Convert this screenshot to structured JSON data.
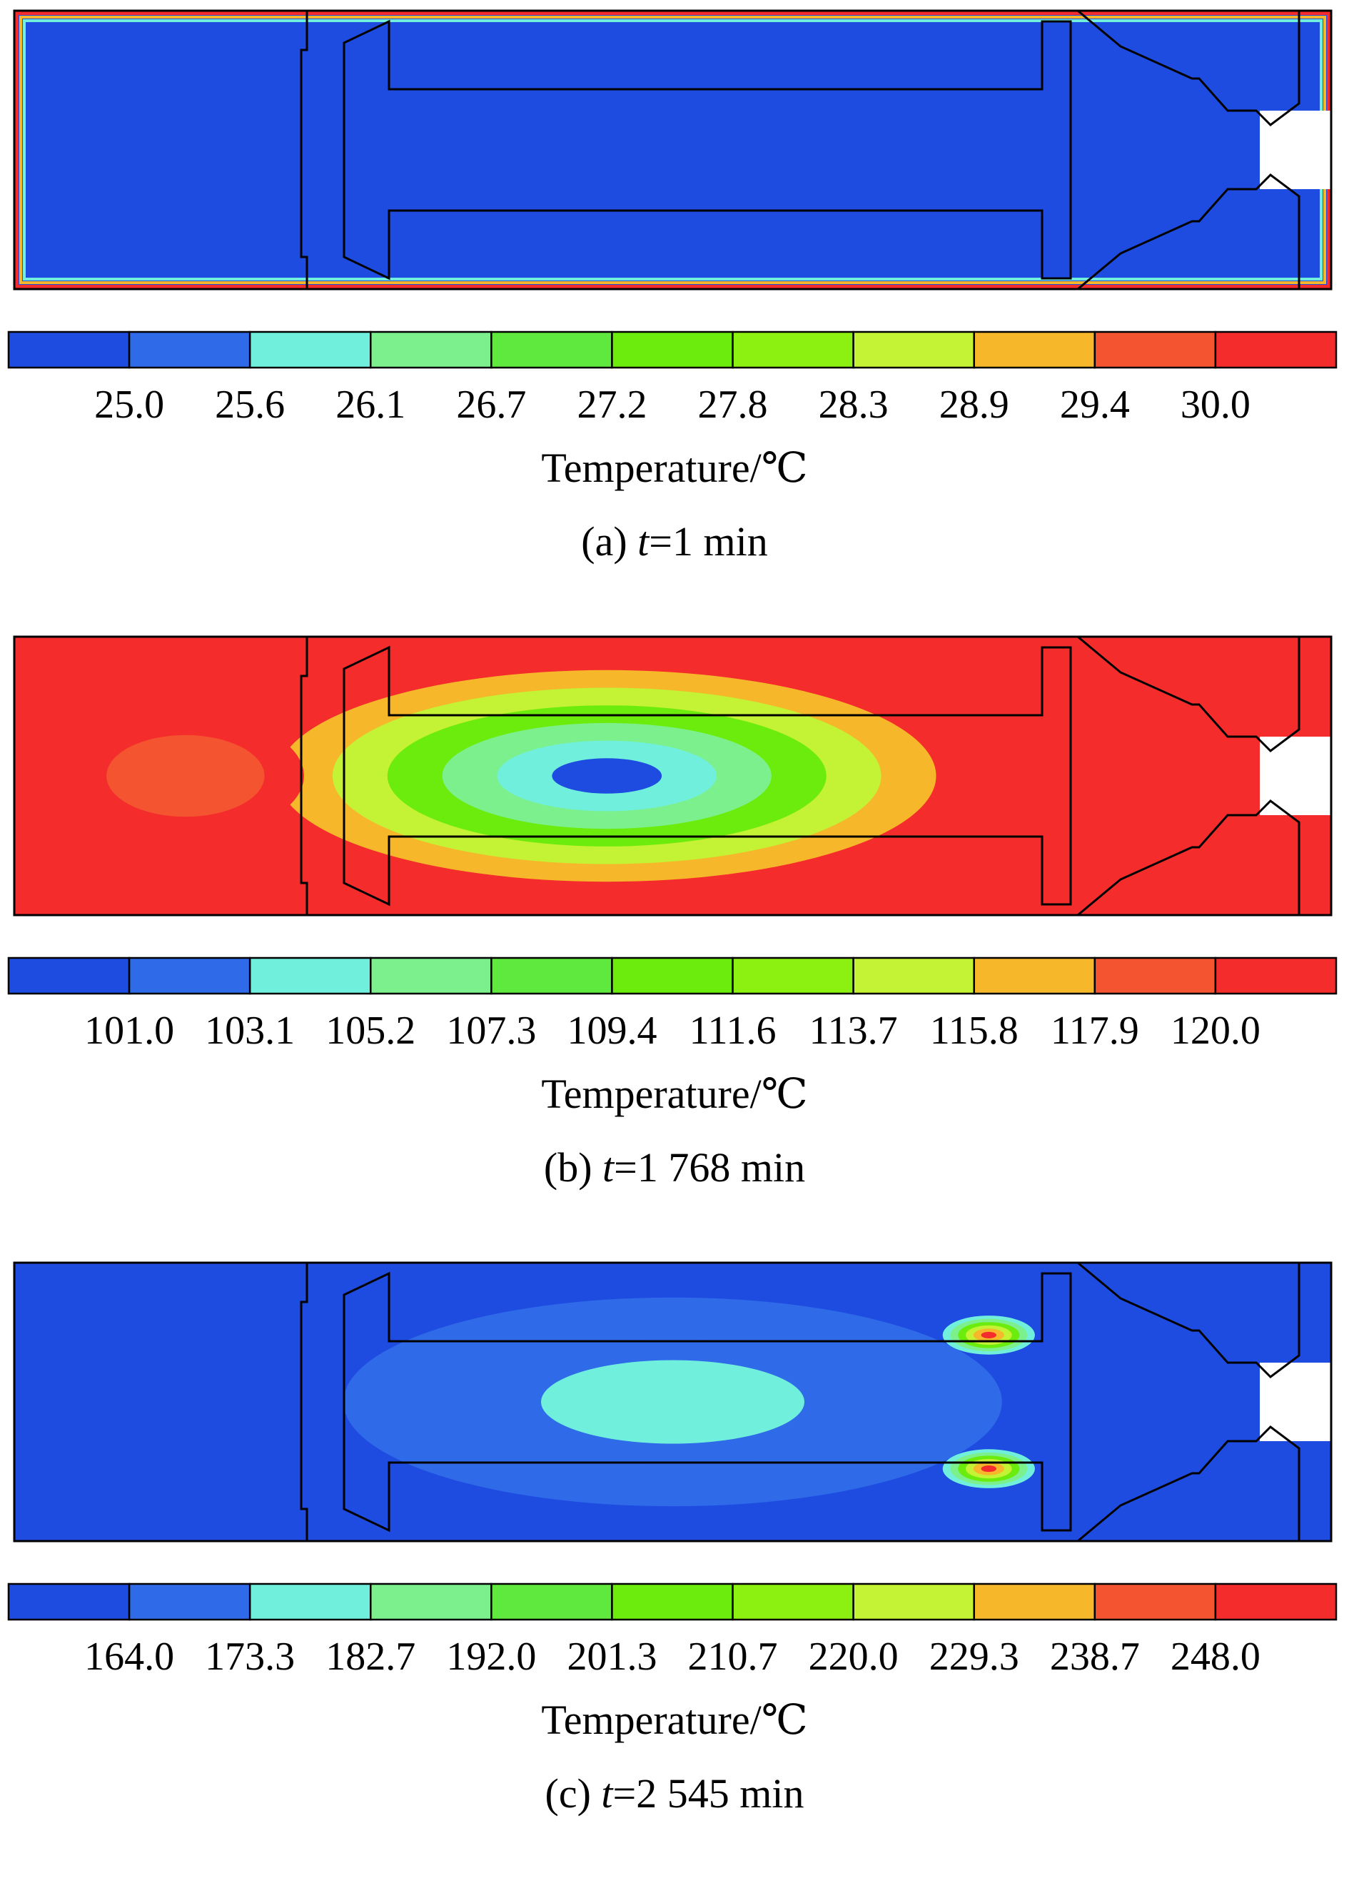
{
  "chart_data": [
    {
      "type": "heatmap",
      "caption_prefix": "(a) ",
      "caption_var": "t",
      "caption_suffix": "=1 min",
      "colorbar_label": "Temperature/℃",
      "ticks": [
        "25.0",
        "25.6",
        "26.1",
        "26.7",
        "27.2",
        "27.8",
        "28.3",
        "28.9",
        "29.4",
        "30.0"
      ],
      "range": [
        25.0,
        30.0
      ],
      "field": {
        "background": 25.0,
        "blobs": [],
        "wall_band": 30.0
      }
    },
    {
      "type": "heatmap",
      "caption_prefix": "(b) ",
      "caption_var": "t",
      "caption_suffix": "=1 768 min",
      "colorbar_label": "Temperature/℃",
      "ticks": [
        "101.0",
        "103.1",
        "105.2",
        "107.3",
        "109.4",
        "111.6",
        "113.7",
        "115.8",
        "117.9",
        "120.0"
      ],
      "range": [
        101.0,
        120.0
      ],
      "field": {
        "background": 120.0,
        "blobs": [
          {
            "rel": [
              0.45,
              0.5
            ],
            "spread": [
              0.25,
              0.38
            ],
            "value": 101.0
          },
          {
            "rel": [
              0.13,
              0.5
            ],
            "spread": [
              0.09,
              0.22
            ],
            "value": 117.9
          }
        ],
        "wall_band": null
      }
    },
    {
      "type": "heatmap",
      "caption_prefix": "(c) ",
      "caption_var": "t",
      "caption_suffix": "=2 545 min",
      "colorbar_label": "Temperature/℃",
      "ticks": [
        "164.0",
        "173.3",
        "182.7",
        "192.0",
        "201.3",
        "210.7",
        "220.0",
        "229.3",
        "238.7",
        "248.0"
      ],
      "range": [
        164.0,
        248.0
      ],
      "field": {
        "background": 164.0,
        "blobs": [
          {
            "rel": [
              0.5,
              0.5
            ],
            "spread": [
              0.3,
              0.45
            ],
            "value": 182.7
          },
          {
            "rel": [
              0.74,
              0.26
            ],
            "spread": [
              0.035,
              0.07
            ],
            "value": 248.0
          },
          {
            "rel": [
              0.74,
              0.74
            ],
            "spread": [
              0.035,
              0.07
            ],
            "value": 248.0
          }
        ],
        "wall_band": null
      }
    }
  ],
  "palette": [
    "#1f4ce0",
    "#2f6ae8",
    "#70f0dc",
    "#7cf08c",
    "#5fe83e",
    "#6cec0c",
    "#8cf010",
    "#c4f234",
    "#f6b82a",
    "#f45430",
    "#f42c2c"
  ]
}
